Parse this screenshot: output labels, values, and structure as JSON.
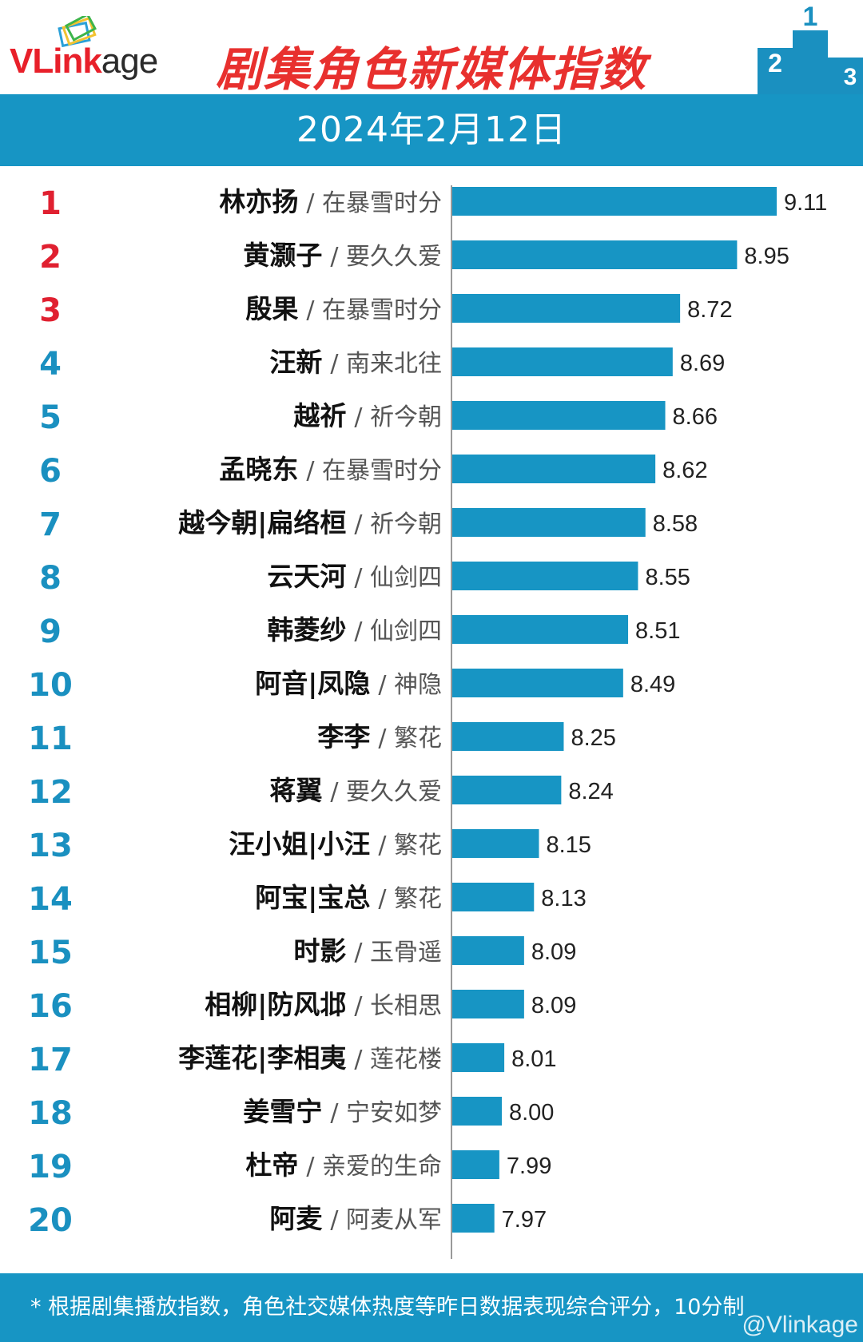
{
  "header": {
    "logo_text_1": "VLink",
    "logo_text_2": "age",
    "title": "剧集角色新媒体指数",
    "podium_labels": [
      "2",
      "1",
      "3"
    ]
  },
  "date": "2024年2月12日",
  "colors": {
    "bar": "#1795c4",
    "top_rank": "#e02030",
    "rank": "#1a90c0",
    "header_band": "#1795c4",
    "title": "#e8302e"
  },
  "chart_data": {
    "type": "bar",
    "orientation": "horizontal",
    "xlim": [
      0,
      9.11
    ],
    "grid": false,
    "legend": "none",
    "ranks": [
      "1",
      "2",
      "3",
      "4",
      "5",
      "6",
      "7",
      "8",
      "9",
      "10",
      "11",
      "12",
      "13",
      "14",
      "15",
      "16",
      "17",
      "18",
      "19",
      "20"
    ],
    "characters": [
      "林亦扬",
      "黄灏子",
      "殷果",
      "汪新",
      "越祈",
      "孟晓东",
      "越今朝|扁络桓",
      "云天河",
      "韩菱纱",
      "阿音|凤隐",
      "李李",
      "蒋翼",
      "汪小姐|小汪",
      "阿宝|宝总",
      "时影",
      "相柳|防风邶",
      "李莲花|李相夷",
      "姜雪宁",
      "杜帝",
      "阿麦"
    ],
    "dramas": [
      "/ 在暴雪时分",
      "/ 要久久爱",
      "/ 在暴雪时分",
      "/ 南来北往",
      "/ 祈今朝",
      "/ 在暴雪时分",
      "/ 祈今朝",
      "/ 仙剑四",
      "/ 仙剑四",
      "/ 神隐",
      "/ 繁花",
      "/ 要久久爱",
      "/ 繁花",
      "/ 繁花",
      "/ 玉骨遥",
      "/ 长相思",
      "/ 莲花楼",
      "/ 宁安如梦",
      "/ 亲爱的生命",
      "/ 阿麦从军"
    ],
    "values": [
      9.11,
      8.95,
      8.72,
      8.69,
      8.66,
      8.62,
      8.58,
      8.55,
      8.51,
      8.49,
      8.25,
      8.24,
      8.15,
      8.13,
      8.09,
      8.09,
      8.01,
      8.0,
      7.99,
      7.97
    ],
    "value_labels": [
      "9.11",
      "8.95",
      "8.72",
      "8.69",
      "8.66",
      "8.62",
      "8.58",
      "8.55",
      "8.51",
      "8.49",
      "8.25",
      "8.24",
      "8.15",
      "8.13",
      "8.09",
      "8.09",
      "8.01",
      "8.00",
      "7.99",
      "7.97"
    ]
  },
  "footer": {
    "note": "* 根据剧集播放指数，角色社交媒体热度等昨日数据表现综合评分，10分制",
    "watermark": "@Vlinkage"
  }
}
